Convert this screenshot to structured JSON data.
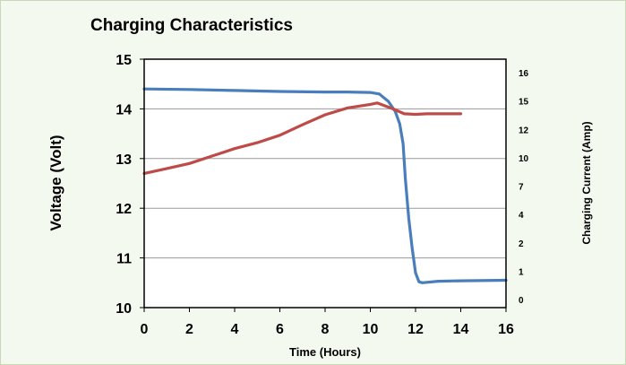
{
  "chart_data": {
    "type": "line",
    "title": "Charging Characteristics",
    "xlabel": "Time (Hours)",
    "ylabel": "Voltage (Volt)",
    "y2label": "Charging Current (Amp)",
    "xlim": [
      0,
      16
    ],
    "ylim": [
      10,
      15
    ],
    "x_ticks": [
      "0",
      "2",
      "4",
      "6",
      "8",
      "10",
      "12",
      "14",
      "16"
    ],
    "y_ticks": [
      "10",
      "11",
      "12",
      "13",
      "14",
      "15"
    ],
    "y2_ticks": [
      "0",
      "1",
      "2",
      "4",
      "7",
      "10",
      "12",
      "15",
      "16"
    ],
    "grid": "horizontal",
    "series": [
      {
        "color": "#4a7ebb",
        "axis": "right",
        "x": [
          0,
          2,
          4,
          6,
          8,
          9,
          10,
          10.4,
          10.8,
          11.1,
          11.3,
          11.45,
          11.55,
          11.7,
          11.85,
          12,
          12.15,
          12.3,
          13,
          14,
          16
        ],
        "y": [
          14.4,
          14.39,
          14.37,
          14.35,
          14.34,
          14.34,
          14.33,
          14.3,
          14.15,
          13.95,
          13.7,
          13.3,
          12.6,
          11.8,
          11.2,
          10.7,
          10.52,
          10.5,
          10.53,
          10.54,
          10.55
        ]
      },
      {
        "color": "#be4b48",
        "axis": "left",
        "x": [
          0,
          1,
          2,
          3,
          4,
          5,
          6,
          7,
          8,
          9,
          10,
          10.3,
          11,
          11.5,
          12,
          12.5,
          13,
          14
        ],
        "y": [
          12.7,
          12.8,
          12.9,
          13.05,
          13.2,
          13.32,
          13.47,
          13.68,
          13.88,
          14.02,
          14.09,
          14.12,
          14.0,
          13.9,
          13.89,
          13.9,
          13.9,
          13.9
        ]
      }
    ]
  }
}
